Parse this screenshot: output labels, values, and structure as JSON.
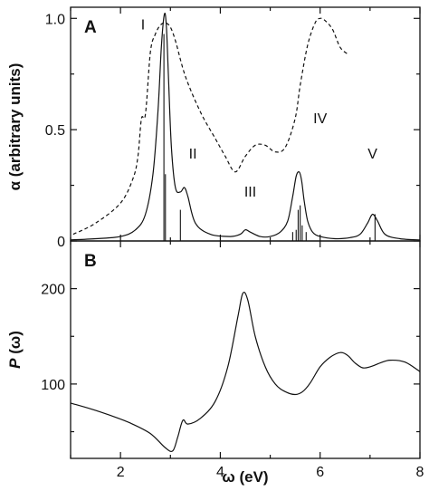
{
  "chart_data": [
    {
      "panel": "A",
      "type": "line",
      "ylabel": "α (arbitrary units)",
      "xlim": [
        1,
        8
      ],
      "ylim": [
        0,
        1.05
      ],
      "yticks": [
        "0",
        "0.5",
        "1.0"
      ],
      "peak_labels": [
        {
          "text": "I",
          "x": 2.45,
          "y": 0.95
        },
        {
          "text": "II",
          "x": 3.45,
          "y": 0.37
        },
        {
          "text": "III",
          "x": 4.6,
          "y": 0.2
        },
        {
          "text": "IV",
          "x": 6.0,
          "y": 0.53
        },
        {
          "text": "V",
          "x": 7.05,
          "y": 0.37
        }
      ],
      "series": [
        {
          "style": "solid",
          "x": [
            1.0,
            1.5,
            2.0,
            2.3,
            2.5,
            2.65,
            2.75,
            2.82,
            2.88,
            2.92,
            2.96,
            3.02,
            3.1,
            3.2,
            3.28,
            3.35,
            3.5,
            3.8,
            4.2,
            4.4,
            4.5,
            4.6,
            4.8,
            5.0,
            5.2,
            5.35,
            5.45,
            5.52,
            5.58,
            5.63,
            5.68,
            5.75,
            5.85,
            6.0,
            6.3,
            6.6,
            6.8,
            6.95,
            7.05,
            7.15,
            7.3,
            7.6,
            8.0
          ],
          "y": [
            0.005,
            0.01,
            0.02,
            0.05,
            0.12,
            0.3,
            0.58,
            0.88,
            1.02,
            0.96,
            0.74,
            0.42,
            0.24,
            0.22,
            0.24,
            0.2,
            0.08,
            0.03,
            0.02,
            0.03,
            0.05,
            0.04,
            0.02,
            0.02,
            0.04,
            0.09,
            0.2,
            0.29,
            0.31,
            0.27,
            0.18,
            0.09,
            0.04,
            0.02,
            0.01,
            0.015,
            0.03,
            0.08,
            0.12,
            0.09,
            0.03,
            0.01,
            0.005
          ]
        },
        {
          "style": "dashed",
          "x": [
            1.05,
            1.5,
            2.0,
            2.25,
            2.35,
            2.42,
            2.5,
            2.6,
            2.7,
            2.8,
            2.9,
            3.0,
            3.1,
            3.3,
            3.6,
            3.9,
            4.1,
            4.3,
            4.5,
            4.7,
            4.9,
            5.1,
            5.3,
            5.5,
            5.6,
            5.75,
            5.9,
            6.0,
            6.1,
            6.25,
            6.4,
            6.55
          ],
          "y": [
            0.03,
            0.08,
            0.17,
            0.28,
            0.38,
            0.55,
            0.57,
            0.85,
            0.93,
            0.97,
            0.98,
            0.96,
            0.9,
            0.74,
            0.58,
            0.46,
            0.38,
            0.31,
            0.38,
            0.43,
            0.43,
            0.4,
            0.42,
            0.55,
            0.7,
            0.88,
            0.98,
            1.0,
            0.99,
            0.95,
            0.87,
            0.84
          ]
        }
      ],
      "sticks": [
        {
          "x": 2.87,
          "y": 0.93
        },
        {
          "x": 2.9,
          "y": 0.3
        },
        {
          "x": 3.2,
          "y": 0.14
        },
        {
          "x": 5.45,
          "y": 0.04
        },
        {
          "x": 5.52,
          "y": 0.05
        },
        {
          "x": 5.56,
          "y": 0.14
        },
        {
          "x": 5.6,
          "y": 0.16
        },
        {
          "x": 5.64,
          "y": 0.07
        },
        {
          "x": 5.72,
          "y": 0.04
        },
        {
          "x": 7.1,
          "y": 0.12
        }
      ]
    },
    {
      "panel": "B",
      "type": "line",
      "ylabel": "P (ω)",
      "xlabel": "ω (eV)",
      "xlim": [
        1,
        8
      ],
      "ylim": [
        22,
        250
      ],
      "yticks": [
        "100",
        "200"
      ],
      "xticks": [
        "2",
        "4",
        "6",
        "8"
      ],
      "series": [
        {
          "style": "solid",
          "x": [
            1.0,
            1.4,
            1.8,
            2.2,
            2.6,
            2.9,
            3.05,
            3.15,
            3.25,
            3.35,
            3.6,
            3.9,
            4.15,
            4.35,
            4.45,
            4.55,
            4.7,
            4.9,
            5.1,
            5.3,
            5.5,
            5.65,
            5.8,
            6.0,
            6.2,
            6.4,
            6.55,
            6.7,
            6.85,
            7.0,
            7.2,
            7.4,
            7.7,
            8.0
          ],
          "y": [
            80,
            74,
            67,
            59,
            48,
            33,
            30,
            45,
            62,
            58,
            64,
            82,
            118,
            170,
            195,
            188,
            150,
            118,
            100,
            92,
            89,
            92,
            101,
            118,
            128,
            133,
            130,
            122,
            117,
            118,
            122,
            125,
            123,
            113
          ]
        }
      ]
    }
  ],
  "labels": {
    "panel_a": "A",
    "panel_b": "B",
    "xlabel": "ω (eV)",
    "ylabel_a": "α (arbitrary units)",
    "ylabel_b_italic": "P",
    "ylabel_b_rest": " (ω)"
  }
}
